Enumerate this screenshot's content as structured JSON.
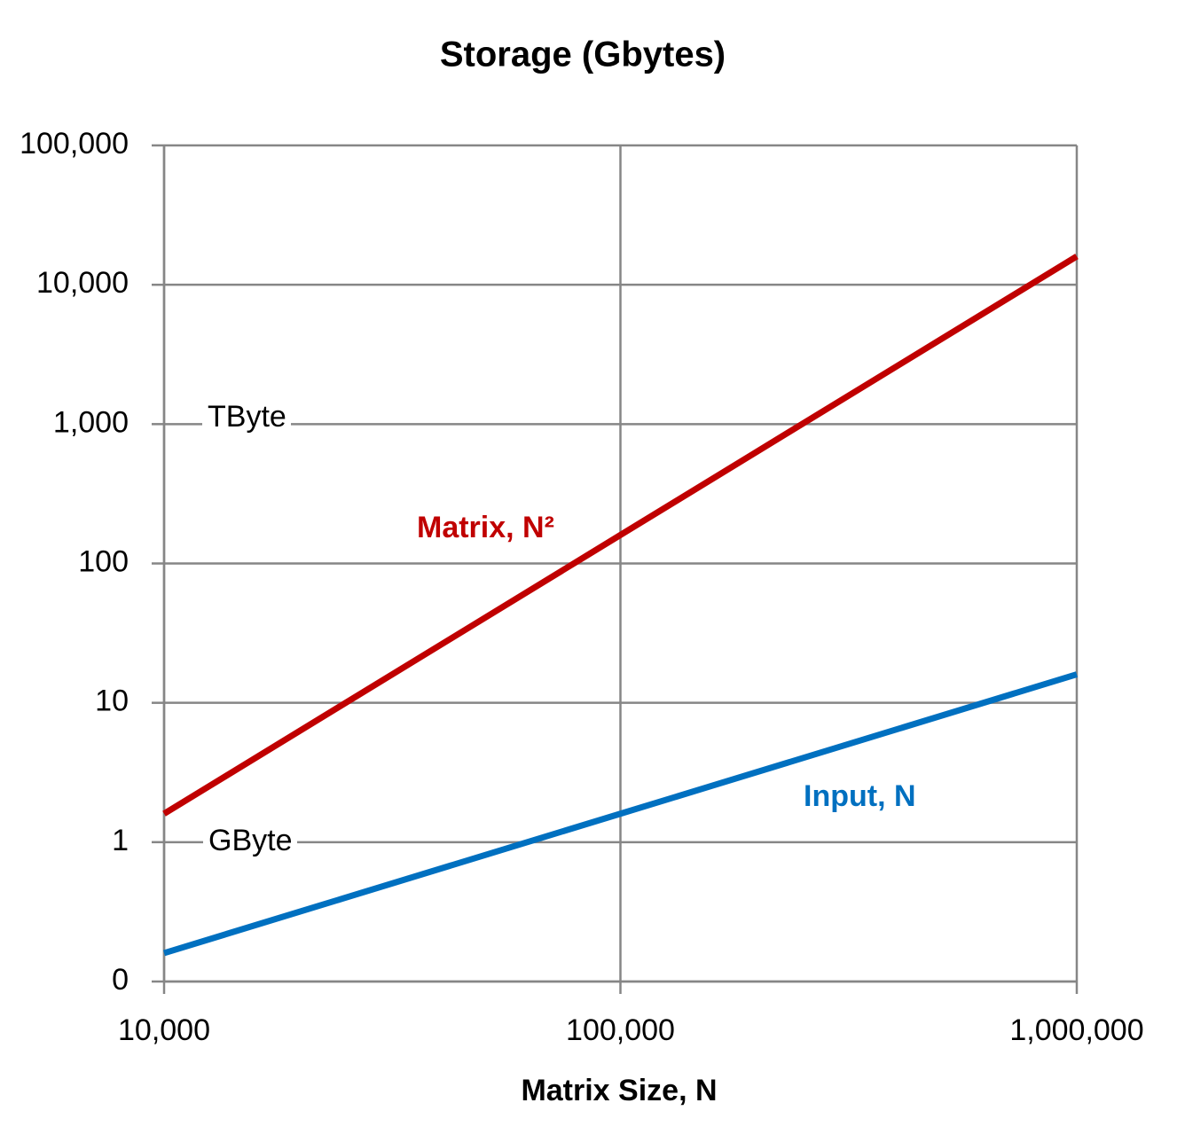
{
  "chart_data": {
    "type": "line",
    "title": "Storage (Gbytes)",
    "x_label": "Matrix Size, N",
    "x": [
      10000,
      100000,
      1000000
    ],
    "series": [
      {
        "name": "Matrix, N²",
        "color": "#c00000",
        "values": [
          1.6,
          160,
          16000
        ]
      },
      {
        "name": "Input, N",
        "color": "#0070c0",
        "values": [
          0.16,
          1.6,
          16
        ]
      }
    ],
    "xlim": [
      10000,
      1000000
    ],
    "xticks": [
      {
        "value": 10000,
        "label": "10,000"
      },
      {
        "value": 100000,
        "label": "100,000"
      },
      {
        "value": 1000000,
        "label": "1,000,000"
      }
    ],
    "ylim": [
      0.1,
      100000
    ],
    "yticks": [
      {
        "value": 0.1,
        "label": "0"
      },
      1,
      10,
      100,
      {
        "value": 1000,
        "label": "1,000"
      },
      {
        "value": 10000,
        "label": "10,000"
      },
      {
        "value": 100000,
        "label": "100,000"
      }
    ],
    "x_log": true,
    "y_log": true,
    "grid": true,
    "annotations": [
      {
        "text": "TByte"
      },
      {
        "text": "GByte"
      },
      {
        "text": "Matrix, N²",
        "color": "#c00000"
      },
      {
        "text": "Input, N",
        "color": "#0070c0"
      }
    ]
  }
}
